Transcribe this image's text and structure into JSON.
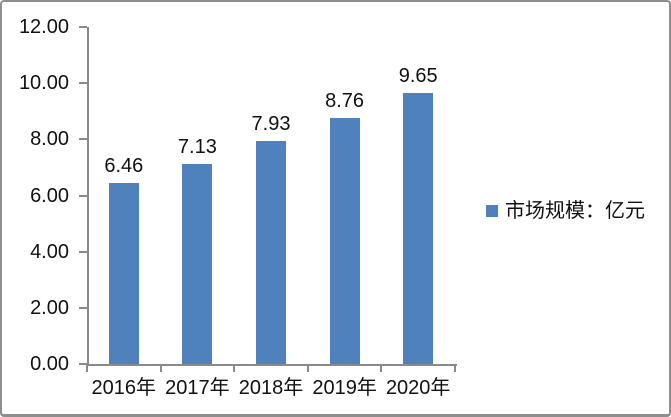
{
  "chart_data": {
    "type": "bar",
    "title": "",
    "categories": [
      "2016年",
      "2017年",
      "2018年",
      "2019年",
      "2020年"
    ],
    "values": [
      6.46,
      7.13,
      7.93,
      8.76,
      9.65
    ],
    "data_labels": [
      "6.46",
      "7.13",
      "7.93",
      "8.76",
      "9.65"
    ],
    "series": [
      {
        "name": "市场规模：亿元",
        "values": [
          6.46,
          7.13,
          7.93,
          8.76,
          9.65
        ]
      }
    ],
    "legend": {
      "label": "市场规模：亿元",
      "position": "right-middle"
    },
    "xlabel": "",
    "ylabel": "",
    "ylim": [
      0,
      12
    ],
    "ytick_step": 2,
    "ytick_labels": [
      "0.00",
      "2.00",
      "4.00",
      "6.00",
      "8.00",
      "10.00",
      "12.00"
    ],
    "grid": false,
    "colors": {
      "bar": "#4f81bd",
      "axis": "#8a8a8a",
      "text": "#111111",
      "frame": "#8e8e8e",
      "background": "#ffffff"
    }
  }
}
